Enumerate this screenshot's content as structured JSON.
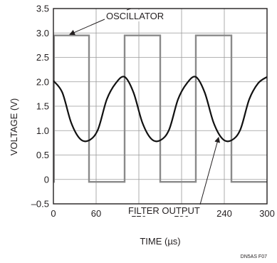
{
  "chart_data": {
    "type": "line",
    "title": "",
    "xlabel": "TIME (µs)",
    "ylabel": "VOLTAGE (V)",
    "xlim": [
      0,
      300
    ],
    "ylim": [
      -0.5,
      3.5
    ],
    "grid": true,
    "x_ticks": [
      0,
      60,
      120,
      180,
      240,
      300
    ],
    "x_tick_labels": [
      "0",
      "60",
      "120",
      "180",
      "240",
      "300"
    ],
    "y_ticks": [
      -0.5,
      0,
      0.5,
      1.0,
      1.5,
      2.0,
      2.5,
      3.0,
      3.5
    ],
    "y_tick_labels": [
      "–0.5",
      "0",
      "0.5",
      "1.0",
      "1.5",
      "2.0",
      "2.5",
      "3.0",
      "3.5"
    ],
    "series": [
      {
        "name": "OSCILLATOR",
        "color": "#8a8a8a",
        "x": [
          0,
          0.8,
          0.8,
          50,
          50,
          100,
          100,
          150,
          150,
          200,
          200,
          250,
          250,
          300
        ],
        "y": [
          -0.05,
          -0.05,
          2.95,
          2.95,
          -0.05,
          -0.05,
          2.95,
          2.95,
          -0.05,
          -0.05,
          2.95,
          2.95,
          -0.05,
          -0.05
        ]
      },
      {
        "name": "FILTER OUTPUT",
        "color": "#111111",
        "x": [
          0,
          12.5,
          25,
          37.5,
          50,
          62.5,
          75,
          87.5,
          100,
          112.5,
          125,
          137.5,
          150,
          162.5,
          175,
          187.5,
          200,
          212.5,
          225,
          237.5,
          250,
          262.5,
          275,
          287.5,
          300
        ],
        "y": [
          2.02,
          1.78,
          1.16,
          0.83,
          0.8,
          1.02,
          1.64,
          1.97,
          2.1,
          1.78,
          1.16,
          0.83,
          0.8,
          1.02,
          1.64,
          1.97,
          2.1,
          1.78,
          1.16,
          0.83,
          0.8,
          1.02,
          1.64,
          1.97,
          2.1
        ]
      }
    ],
    "annotations": [
      {
        "text": "OSCILLATOR",
        "target_series": "OSCILLATOR"
      },
      {
        "text": "FILTER OUTPUT",
        "target_series": "FILTER OUTPUT"
      }
    ],
    "figure_id": "DN5AS F07"
  }
}
